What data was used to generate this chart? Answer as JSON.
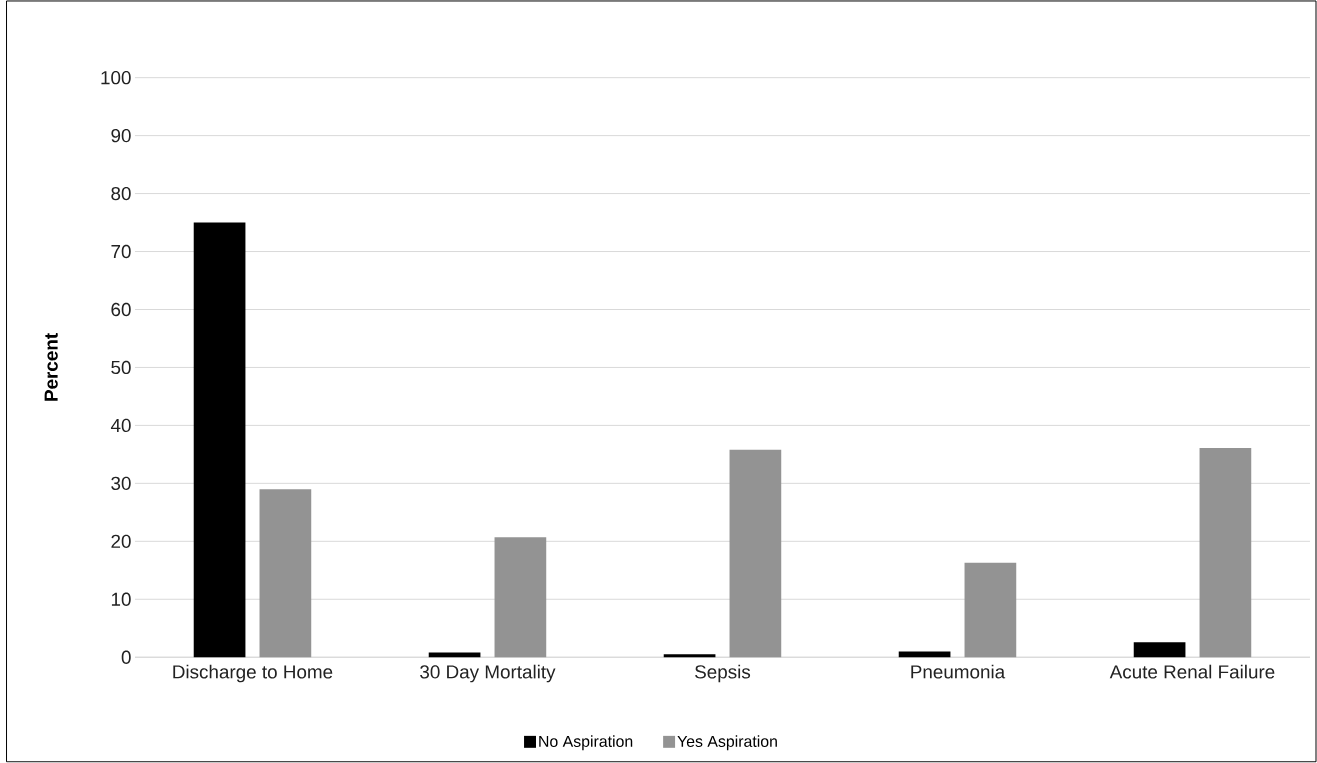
{
  "chart_data": {
    "type": "bar",
    "ylabel": "Percent",
    "categories": [
      "Discharge to Home",
      "30 Day Mortality",
      "Sepsis",
      "Pneumonia",
      "Acute Renal Failure"
    ],
    "series": [
      {
        "name": "No Aspiration",
        "color": "#000000",
        "values": [
          75,
          0.8,
          0.5,
          1.0,
          2.6
        ]
      },
      {
        "name": "Yes Aspiration",
        "color": "#939393",
        "values": [
          29,
          20.7,
          35.8,
          16.3,
          36.1
        ]
      }
    ],
    "ylim": [
      0,
      100
    ],
    "yticks": [
      0,
      10,
      20,
      30,
      40,
      50,
      60,
      70,
      80,
      90,
      100
    ],
    "grid": "y",
    "legend": "bottom"
  }
}
